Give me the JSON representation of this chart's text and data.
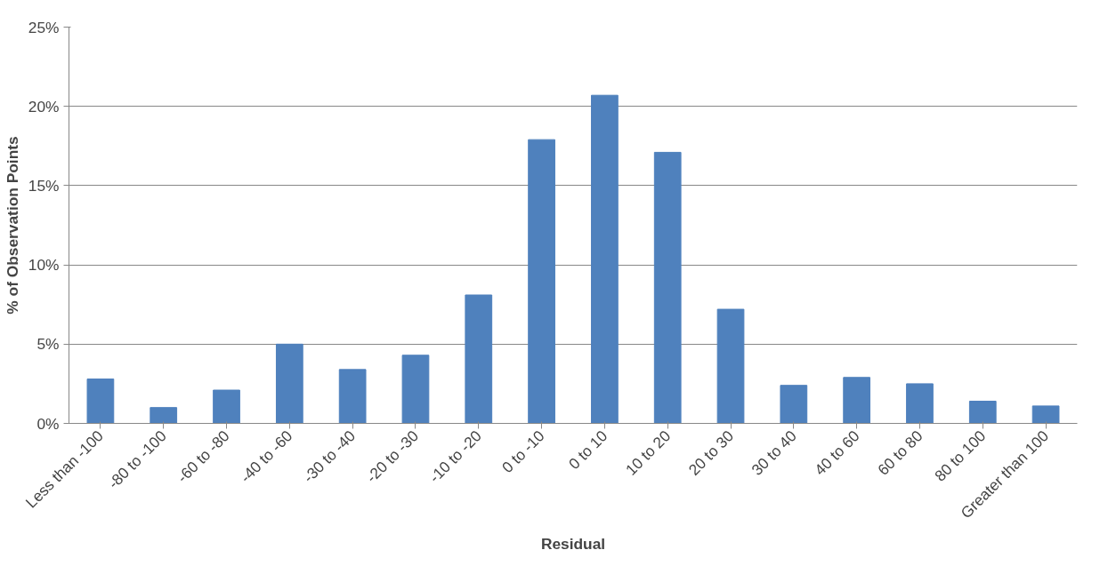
{
  "chart_data": {
    "type": "bar",
    "xlabel": "Residual",
    "ylabel": "% of Observation Points",
    "categories": [
      "Less than -100",
      "-80 to -100",
      "-60 to -80",
      "-40 to -60",
      "-30 to -40",
      "-20 to -30",
      "-10 to -20",
      "0 to -10",
      "0 to 10",
      "10 to 20",
      "20 to 30",
      "30 to 40",
      "40 to 60",
      "60 to 80",
      "80 to 100",
      "Greater than 100"
    ],
    "values": [
      2.8,
      1.0,
      2.1,
      5.0,
      3.4,
      4.3,
      8.1,
      17.9,
      20.7,
      17.1,
      7.2,
      2.4,
      2.9,
      2.5,
      1.4,
      1.1
    ],
    "color": "#4f81bd",
    "ylim": [
      0,
      25
    ],
    "yticks": [
      {
        "value": 0,
        "label": "0%"
      },
      {
        "value": 5,
        "label": "5%"
      },
      {
        "value": 10,
        "label": "10%"
      },
      {
        "value": 15,
        "label": "15%"
      },
      {
        "value": 20,
        "label": "20%"
      },
      {
        "value": 25,
        "label": "25%"
      }
    ],
    "grid": "y"
  }
}
